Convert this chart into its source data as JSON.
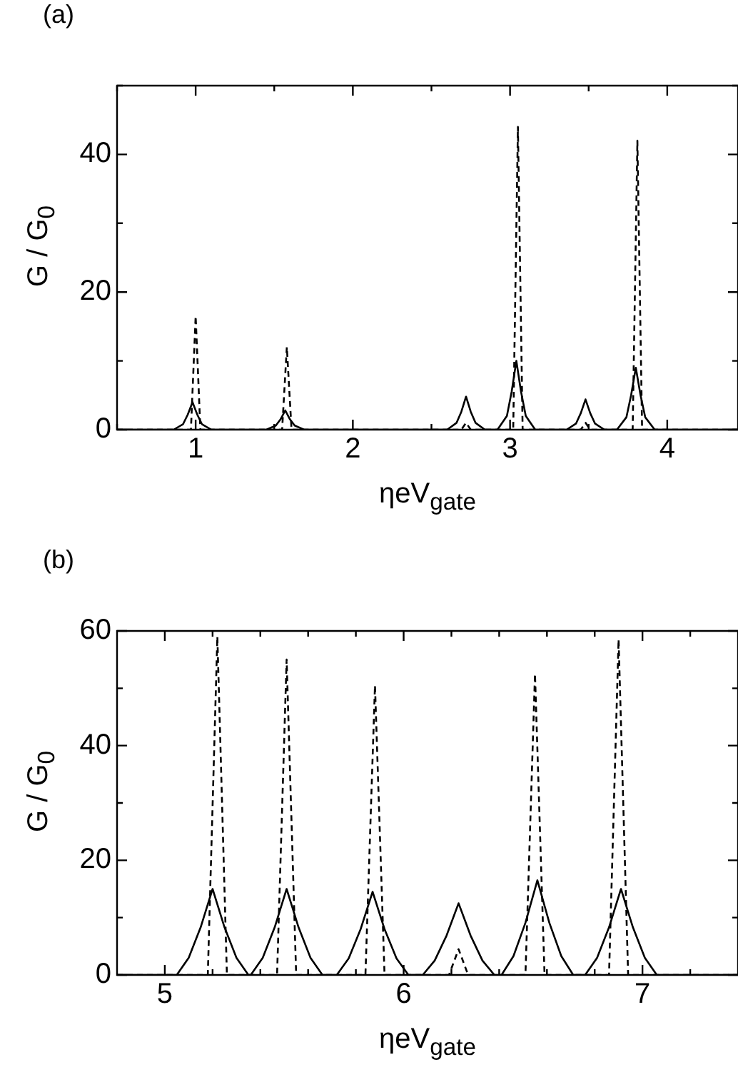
{
  "chart_data": [
    {
      "type": "line",
      "title": "(a)",
      "xlabel": "ηeV$_{gate}$",
      "ylabel": "G / G$_{0}$",
      "xlim": [
        0.5,
        4.45
      ],
      "ylim": [
        0,
        50
      ],
      "xticks": [
        {
          "value": 0.5,
          "label": null
        },
        1,
        {
          "value": 1.5,
          "label": null
        },
        2,
        {
          "value": 2.5,
          "label": null
        },
        3,
        {
          "value": 3.5,
          "label": null
        },
        4
      ],
      "yticks": [
        0,
        {
          "value": 10,
          "label": null
        },
        20,
        {
          "value": 30,
          "label": null
        },
        40,
        {
          "value": 50,
          "label": null
        }
      ],
      "grid": false,
      "legend": false,
      "marker": "none",
      "series": [
        {
          "color": "#000000",
          "line_style": "solid",
          "x": [
            0.5,
            0.86,
            0.92,
            0.95,
            0.98,
            1.01,
            1.04,
            1.1,
            1.45,
            1.51,
            1.54,
            1.57,
            1.6,
            1.63,
            1.69,
            2.6,
            2.66,
            2.69,
            2.72,
            2.75,
            2.78,
            2.84,
            2.92,
            2.98,
            3.01,
            3.04,
            3.07,
            3.1,
            3.16,
            3.36,
            3.42,
            3.45,
            3.48,
            3.51,
            3.54,
            3.6,
            3.68,
            3.74,
            3.77,
            3.8,
            3.83,
            3.86,
            3.92,
            4.45
          ],
          "values": [
            0,
            0,
            0.8,
            2.2,
            4,
            2.2,
            0.8,
            0,
            0,
            0.6,
            1.5,
            2.8,
            1.5,
            0.6,
            0,
            0,
            1,
            2.6,
            4.8,
            2.6,
            1,
            0,
            0,
            2,
            5.5,
            10,
            5.5,
            2,
            0,
            0,
            0.9,
            2.4,
            4.4,
            2.4,
            0.9,
            0,
            0,
            1.8,
            5,
            9,
            5,
            1.8,
            0,
            0
          ]
        },
        {
          "color": "#000000",
          "line_style": "dashed",
          "x": [
            0.5,
            0.97,
            1.0,
            1.03,
            1.55,
            1.58,
            1.61,
            2.69,
            2.72,
            2.75,
            3.02,
            3.05,
            3.08,
            3.45,
            3.48,
            3.51,
            3.78,
            3.81,
            3.84,
            4.45
          ],
          "values": [
            0,
            0,
            16.5,
            0,
            0,
            12,
            0,
            0,
            1,
            0,
            0,
            44,
            0,
            0,
            1,
            0,
            0,
            42,
            0,
            0
          ]
        }
      ]
    },
    {
      "type": "line",
      "title": "(b)",
      "xlabel": "ηeV$_{gate}$",
      "ylabel": "G / G$_{0}$",
      "xlim": [
        4.8,
        7.4
      ],
      "ylim": [
        0,
        60
      ],
      "xticks": [
        5,
        {
          "value": 5.2,
          "label": null
        },
        {
          "value": 5.4,
          "label": null
        },
        {
          "value": 5.6,
          "label": null
        },
        {
          "value": 5.8,
          "label": null
        },
        6,
        {
          "value": 6.2,
          "label": null
        },
        {
          "value": 6.4,
          "label": null
        },
        {
          "value": 6.6,
          "label": null
        },
        {
          "value": 6.8,
          "label": null
        },
        7,
        {
          "value": 7.2,
          "label": null
        }
      ],
      "yticks": [
        0,
        {
          "value": 10,
          "label": null
        },
        20,
        {
          "value": 30,
          "label": null
        },
        40,
        {
          "value": 50,
          "label": null
        },
        60
      ],
      "grid": false,
      "legend": false,
      "marker": "none",
      "series": [
        {
          "color": "#000000",
          "line_style": "solid",
          "x": [
            4.8,
            5.05,
            5.1,
            5.15,
            5.2,
            5.25,
            5.3,
            5.35,
            5.36,
            5.41,
            5.46,
            5.51,
            5.56,
            5.61,
            5.66,
            5.72,
            5.77,
            5.82,
            5.87,
            5.92,
            5.97,
            6.02,
            6.08,
            6.13,
            6.18,
            6.23,
            6.28,
            6.33,
            6.38,
            6.41,
            6.46,
            6.51,
            6.56,
            6.61,
            6.66,
            6.71,
            6.76,
            6.81,
            6.86,
            6.91,
            6.96,
            7.01,
            7.06,
            7.4
          ],
          "values": [
            0,
            0,
            3,
            8.3,
            15,
            8.3,
            3,
            0,
            0,
            3,
            8.3,
            15,
            8.3,
            3,
            0,
            0,
            2.9,
            8,
            14.5,
            8,
            2.9,
            0,
            0,
            2.5,
            6.9,
            12.5,
            6.9,
            2.5,
            0,
            0,
            3.3,
            9.1,
            16.5,
            9.1,
            3.3,
            0,
            0,
            3,
            8.3,
            15,
            8.3,
            3,
            0,
            0
          ]
        },
        {
          "color": "#000000",
          "line_style": "dashed",
          "x": [
            4.8,
            5.18,
            5.22,
            5.26,
            5.47,
            5.51,
            5.55,
            5.84,
            5.88,
            5.92,
            6.19,
            6.23,
            6.27,
            6.51,
            6.55,
            6.59,
            6.86,
            6.9,
            6.94,
            7.4
          ],
          "values": [
            0,
            0,
            59,
            0,
            0,
            55,
            0,
            0,
            50.5,
            0,
            0,
            4.5,
            0,
            0,
            52.5,
            0,
            0,
            58.5,
            0,
            0
          ]
        }
      ]
    }
  ]
}
